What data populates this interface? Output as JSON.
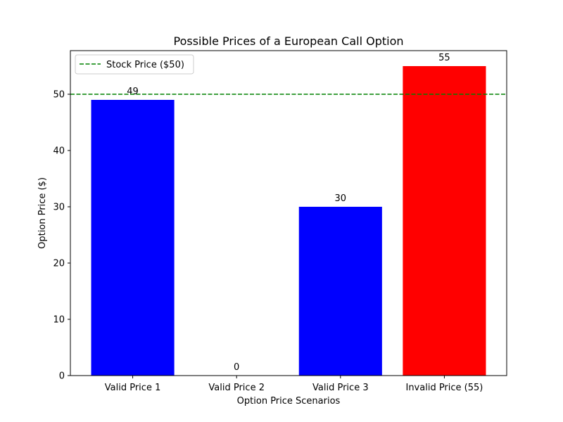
{
  "chart_data": {
    "type": "bar",
    "title": "Possible Prices of a European Call Option",
    "xlabel": "Option Price Scenarios",
    "ylabel": "Option Price ($)",
    "categories": [
      "Valid Price 1",
      "Valid Price 2",
      "Valid Price 3",
      "Invalid Price (55)"
    ],
    "values": [
      49,
      0,
      30,
      55
    ],
    "data_labels": [
      "49",
      "0",
      "30",
      "55"
    ],
    "bar_colors": [
      "#0000ff",
      "#0000ff",
      "#0000ff",
      "#ff0000"
    ],
    "ylim": [
      0,
      57.75
    ],
    "yticks": [
      0,
      10,
      20,
      30,
      40,
      50
    ],
    "ytick_labels": [
      "0",
      "10",
      "20",
      "30",
      "40",
      "50"
    ],
    "grid": false,
    "reference_line": {
      "value": 50,
      "label": "Stock Price ($50)",
      "color": "#008000",
      "style": "dashed"
    },
    "legend": {
      "position": "top-left",
      "entries": [
        "Stock Price ($50)"
      ]
    }
  }
}
